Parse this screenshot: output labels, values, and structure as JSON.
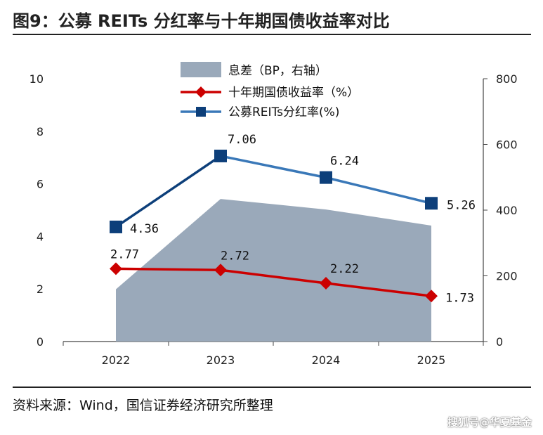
{
  "title": "图9：公募 REITs 分红率与十年期国债收益率对比",
  "source": "资料来源：Wind，国信证券经济研究所整理",
  "watermark": "搜狐号@华夏基金",
  "chart_data": {
    "type": "line",
    "categories": [
      "2022",
      "2023",
      "2024",
      "2025"
    ],
    "y_left": {
      "min": 0,
      "max": 10,
      "ticks": [
        "0",
        "2",
        "4",
        "6",
        "8",
        "10"
      ]
    },
    "y_right": {
      "min": 0,
      "max": 800,
      "ticks": [
        "0",
        "200",
        "400",
        "600",
        "800"
      ]
    },
    "series": [
      {
        "name": "息差（BP，右轴）",
        "type": "area",
        "axis": "right",
        "values": [
          159,
          434,
          402,
          353
        ],
        "color": "#9aa9ba"
      },
      {
        "name": "十年期国债收益率（%）",
        "type": "line",
        "axis": "left",
        "values": [
          2.77,
          2.72,
          2.22,
          1.73
        ],
        "labels": [
          "2.77",
          "2.72",
          "2.22",
          "1.73"
        ],
        "color": "#cc0000",
        "marker": "diamond"
      },
      {
        "name": "公募REITs分红率(%)",
        "type": "line",
        "axis": "left",
        "values": [
          4.36,
          7.06,
          6.24,
          5.26
        ],
        "labels": [
          "4.36",
          "7.06",
          "6.24",
          "5.26"
        ],
        "color": "#3a78b8",
        "marker_color": "#0d3f7a",
        "marker": "square"
      }
    ]
  }
}
